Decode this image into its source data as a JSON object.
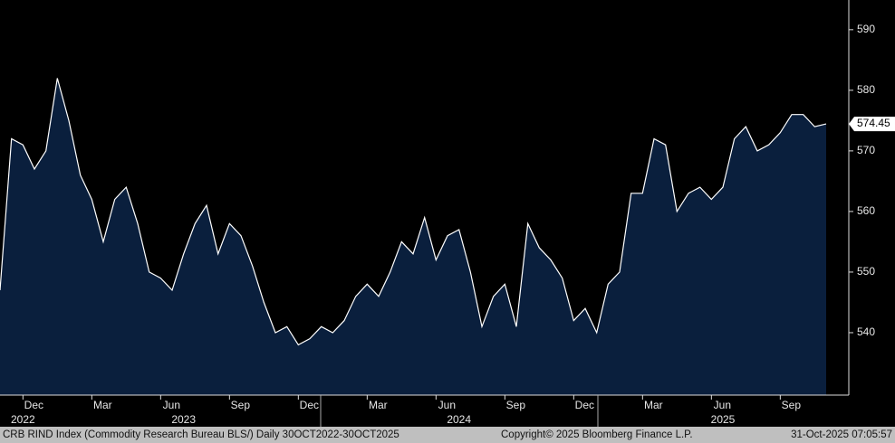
{
  "chart_data": {
    "type": "area",
    "title": "CRB RIND Index (Commodity Research Bureau BLS/) Daily 30OCT2022-30OCT2025",
    "copyright": "Copyright© 2025 Bloomberg Finance L.P.",
    "timestamp": "31-Oct-2025 07:05:57",
    "categories": [
      null,
      null,
      "Dec",
      null,
      null,
      null,
      null,
      null,
      "Mar",
      null,
      null,
      null,
      null,
      null,
      "Jun",
      null,
      null,
      null,
      null,
      null,
      "Sep",
      null,
      null,
      null,
      null,
      null,
      "Dec",
      null,
      null,
      null,
      null,
      null,
      "Mar",
      null,
      null,
      null,
      null,
      null,
      "Jun",
      null,
      null,
      null,
      null,
      null,
      "Sep",
      null,
      null,
      null,
      null,
      null,
      "Dec",
      null,
      null,
      null,
      null,
      null,
      "Mar",
      null,
      null,
      null,
      null,
      null,
      "Jun",
      null,
      null,
      null,
      null,
      null,
      "Sep",
      null,
      null,
      null,
      null
    ],
    "year_categories": [
      null,
      null,
      "2022",
      null,
      null,
      null,
      null,
      null,
      null,
      null,
      null,
      null,
      null,
      null,
      null,
      null,
      "2023",
      null,
      null,
      null,
      null,
      null,
      null,
      null,
      null,
      null,
      null,
      null,
      null,
      null,
      null,
      null,
      null,
      null,
      null,
      null,
      null,
      null,
      null,
      null,
      "2024",
      null,
      null,
      null,
      null,
      null,
      null,
      null,
      null,
      null,
      null,
      null,
      null,
      null,
      null,
      null,
      null,
      null,
      null,
      null,
      null,
      null,
      null,
      "2025",
      null,
      null,
      null,
      null,
      null,
      null,
      null,
      null,
      null
    ],
    "series": [
      {
        "name": "CRB RIND Index",
        "color": "#ffffff",
        "fill": "#0a1f3d",
        "values": [
          547,
          572,
          571,
          567,
          570,
          582,
          575,
          566,
          562,
          555,
          562,
          564,
          558,
          550,
          549,
          547,
          553,
          558,
          561,
          553,
          558,
          556,
          551,
          545,
          540,
          541,
          538,
          539,
          541,
          540,
          542,
          546,
          548,
          546,
          550,
          555,
          553,
          559,
          552,
          556,
          557,
          550,
          541,
          546,
          548,
          541,
          558,
          554,
          552,
          549,
          542,
          544,
          540,
          548,
          550,
          563,
          563,
          572,
          571,
          560,
          563,
          564,
          562,
          564,
          572,
          574,
          570,
          571,
          573,
          576,
          576,
          574,
          574.45
        ]
      }
    ],
    "ylim": [
      529.7,
      594.9
    ],
    "yticks": [
      540,
      550,
      560,
      570,
      580,
      590
    ]
  }
}
